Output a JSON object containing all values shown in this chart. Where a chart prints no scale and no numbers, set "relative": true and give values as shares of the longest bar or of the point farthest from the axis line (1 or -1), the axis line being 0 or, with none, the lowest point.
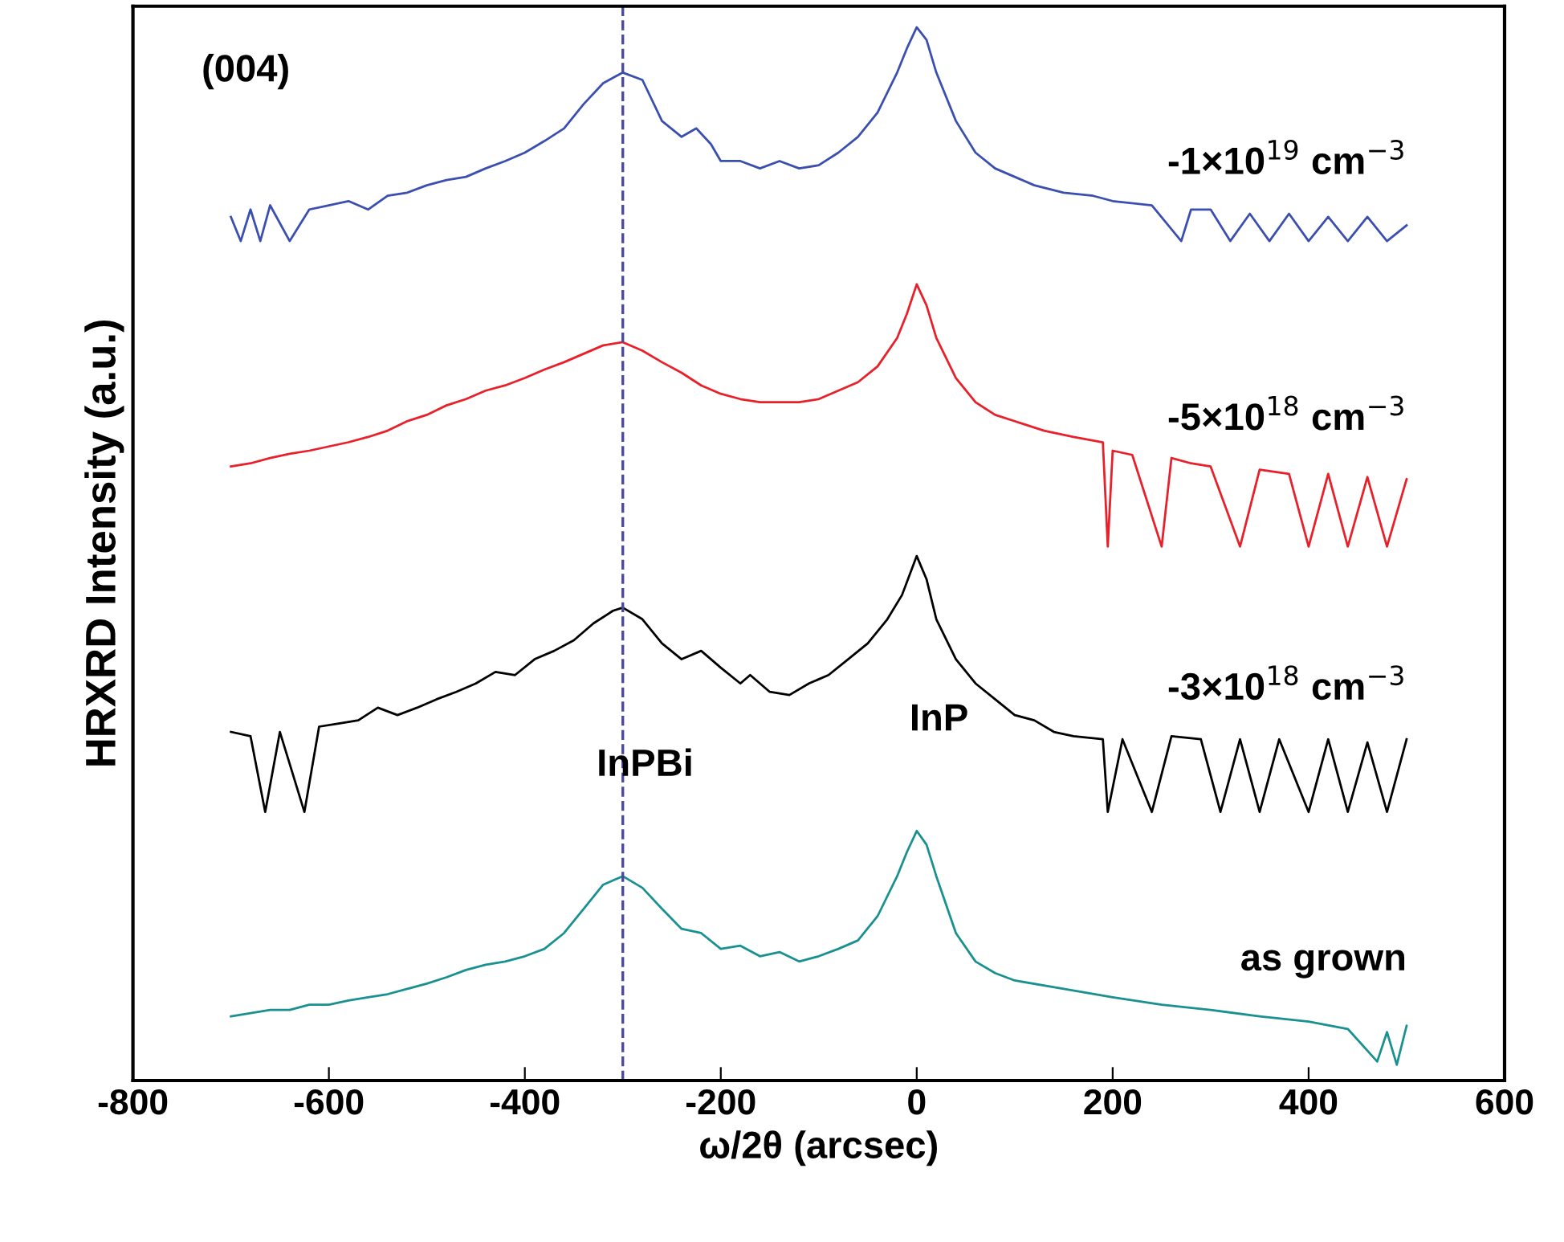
{
  "chart_data": {
    "type": "line",
    "xlabel": "ω/2θ (arcsec)",
    "ylabel": "HRXRD Intensity (a.u.)",
    "relative": true,
    "xlim": [
      -800,
      600
    ],
    "xticks": [
      -800,
      -600,
      -400,
      -200,
      0,
      200,
      400,
      600
    ],
    "grid": false,
    "legend": false,
    "line_style": "solid",
    "marker": "none",
    "ref_lines": [
      {
        "axis": "x",
        "value": -300,
        "color": "#4a4a9a",
        "line_style": "dashed"
      }
    ],
    "annotations": [
      "(004)",
      {
        "text": "InPBi",
        "x": -300,
        "y": 0.194
      },
      {
        "text": "InP",
        "x": 0,
        "y": 0.237
      }
    ],
    "series": [
      {
        "name": "-1×10$^{19}$ cm$^{−3}$",
        "color": "#3b4fb0",
        "x": [
          -700,
          -690,
          -680,
          -670,
          -660,
          -640,
          -620,
          -600,
          -580,
          -560,
          -540,
          -520,
          -500,
          -480,
          -460,
          -440,
          -420,
          -400,
          -380,
          -360,
          -340,
          -320,
          -300,
          -280,
          -260,
          -240,
          -225,
          -210,
          -200,
          -180,
          -160,
          -140,
          -120,
          -100,
          -80,
          -60,
          -40,
          -20,
          -10,
          0,
          10,
          20,
          40,
          60,
          80,
          100,
          120,
          150,
          180,
          200,
          240,
          270,
          280,
          300,
          320,
          340,
          360,
          380,
          400,
          420,
          440,
          460,
          480,
          500
        ],
        "values": [
          0.82,
          0.797,
          0.827,
          0.797,
          0.831,
          0.797,
          0.827,
          0.831,
          0.835,
          0.827,
          0.84,
          0.843,
          0.85,
          0.855,
          0.858,
          0.866,
          0.873,
          0.881,
          0.892,
          0.904,
          0.927,
          0.947,
          0.957,
          0.95,
          0.911,
          0.896,
          0.904,
          0.889,
          0.873,
          0.873,
          0.866,
          0.873,
          0.866,
          0.869,
          0.881,
          0.896,
          0.919,
          0.957,
          0.98,
          1.0,
          0.988,
          0.957,
          0.911,
          0.881,
          0.866,
          0.858,
          0.85,
          0.843,
          0.84,
          0.835,
          0.831,
          0.797,
          0.827,
          0.827,
          0.797,
          0.823,
          0.797,
          0.823,
          0.797,
          0.82,
          0.797,
          0.82,
          0.797,
          0.812
        ]
      },
      {
        "name": "-5×10$^{18}$ cm$^{−3}$",
        "color": "#e8202a",
        "x": [
          -700,
          -680,
          -660,
          -640,
          -620,
          -600,
          -580,
          -560,
          -540,
          -520,
          -500,
          -480,
          -460,
          -440,
          -420,
          -400,
          -380,
          -360,
          -340,
          -320,
          -300,
          -280,
          -260,
          -240,
          -220,
          -200,
          -180,
          -160,
          -140,
          -120,
          -100,
          -80,
          -60,
          -40,
          -20,
          -10,
          0,
          10,
          20,
          40,
          60,
          80,
          100,
          130,
          160,
          190,
          195,
          200,
          220,
          250,
          260,
          280,
          300,
          330,
          350,
          380,
          400,
          420,
          440,
          460,
          480,
          500
        ],
        "values": [
          0.583,
          0.586,
          0.591,
          0.595,
          0.598,
          0.602,
          0.606,
          0.611,
          0.617,
          0.626,
          0.632,
          0.641,
          0.647,
          0.655,
          0.66,
          0.667,
          0.675,
          0.682,
          0.69,
          0.698,
          0.701,
          0.693,
          0.682,
          0.672,
          0.66,
          0.652,
          0.647,
          0.644,
          0.644,
          0.644,
          0.647,
          0.655,
          0.663,
          0.678,
          0.705,
          0.728,
          0.756,
          0.736,
          0.705,
          0.667,
          0.644,
          0.632,
          0.626,
          0.617,
          0.611,
          0.606,
          0.507,
          0.598,
          0.594,
          0.507,
          0.591,
          0.586,
          0.583,
          0.507,
          0.58,
          0.576,
          0.507,
          0.576,
          0.507,
          0.573,
          0.507,
          0.571
        ]
      },
      {
        "name": "-3×10$^{18}$ cm$^{−3}$",
        "color": "#000000",
        "x": [
          -700,
          -680,
          -665,
          -650,
          -625,
          -610,
          -590,
          -570,
          -550,
          -530,
          -510,
          -490,
          -470,
          -450,
          -430,
          -410,
          -390,
          -370,
          -350,
          -330,
          -310,
          -300,
          -280,
          -260,
          -240,
          -220,
          -200,
          -180,
          -170,
          -150,
          -130,
          -110,
          -90,
          -70,
          -50,
          -30,
          -15,
          0,
          10,
          20,
          40,
          60,
          80,
          100,
          120,
          140,
          160,
          190,
          195,
          210,
          240,
          260,
          290,
          310,
          330,
          350,
          370,
          400,
          420,
          440,
          460,
          480,
          500
        ],
        "values": [
          0.331,
          0.327,
          0.255,
          0.331,
          0.255,
          0.336,
          0.339,
          0.342,
          0.354,
          0.347,
          0.354,
          0.362,
          0.369,
          0.377,
          0.388,
          0.385,
          0.4,
          0.408,
          0.418,
          0.434,
          0.446,
          0.449,
          0.438,
          0.415,
          0.4,
          0.408,
          0.392,
          0.377,
          0.385,
          0.369,
          0.366,
          0.377,
          0.385,
          0.4,
          0.415,
          0.438,
          0.461,
          0.498,
          0.476,
          0.438,
          0.4,
          0.377,
          0.362,
          0.347,
          0.342,
          0.331,
          0.327,
          0.324,
          0.255,
          0.324,
          0.255,
          0.327,
          0.324,
          0.255,
          0.324,
          0.255,
          0.324,
          0.255,
          0.324,
          0.255,
          0.321,
          0.255,
          0.324
        ]
      },
      {
        "name": "as grown",
        "color": "#1a9090",
        "x": [
          -700,
          -680,
          -660,
          -640,
          -620,
          -600,
          -580,
          -560,
          -540,
          -520,
          -500,
          -480,
          -460,
          -440,
          -420,
          -400,
          -380,
          -360,
          -340,
          -320,
          -300,
          -280,
          -260,
          -240,
          -220,
          -200,
          -180,
          -160,
          -140,
          -120,
          -100,
          -80,
          -60,
          -40,
          -20,
          -10,
          0,
          10,
          20,
          40,
          60,
          80,
          100,
          150,
          200,
          250,
          300,
          350,
          400,
          440,
          470,
          480,
          490,
          500
        ],
        "values": [
          0.061,
          0.064,
          0.067,
          0.067,
          0.072,
          0.072,
          0.076,
          0.079,
          0.082,
          0.087,
          0.092,
          0.098,
          0.105,
          0.11,
          0.113,
          0.118,
          0.125,
          0.14,
          0.163,
          0.186,
          0.194,
          0.183,
          0.163,
          0.144,
          0.14,
          0.125,
          0.128,
          0.118,
          0.122,
          0.113,
          0.118,
          0.125,
          0.133,
          0.156,
          0.194,
          0.217,
          0.237,
          0.224,
          0.194,
          0.14,
          0.113,
          0.102,
          0.095,
          0.087,
          0.079,
          0.072,
          0.067,
          0.061,
          0.056,
          0.049,
          0.018,
          0.046,
          0.015,
          0.052
        ]
      }
    ]
  }
}
